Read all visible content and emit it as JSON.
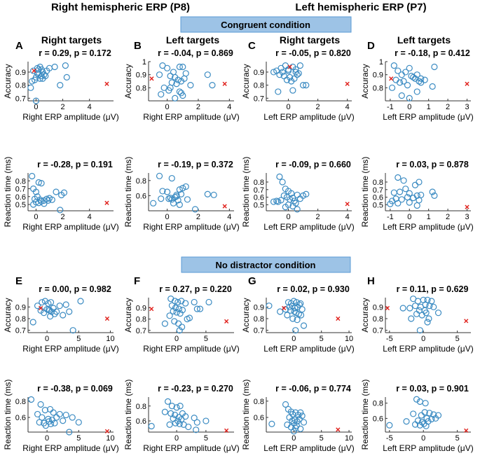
{
  "figure": {
    "header_right": "Right hemispheric ERP (P8)",
    "header_left": "Left hemispheric ERP (P7)",
    "banner_congruent": "Congruent condition",
    "banner_nodistractor": "No distractor condition",
    "panel_letters": [
      "A",
      "B",
      "C",
      "D",
      "E",
      "F",
      "G",
      "H"
    ],
    "col_titles": [
      "Right targets",
      "Left targets",
      "Right targets",
      "Left targets"
    ]
  },
  "colors": {
    "marker": "#3b8bc2",
    "outlier": "#e0201b",
    "banner_fill": "#9dc3e6",
    "axis": "#333333",
    "text": "#000000"
  },
  "chart_data": [
    {
      "id": "A-acc",
      "type": "scatter",
      "panel": "A",
      "title": "r = 0.29, p = 0.172",
      "xlabel": "Right ERP amplitude (μV)",
      "ylabel": "Accuracy",
      "xlim": [
        -0.6,
        5.8
      ],
      "ylim": [
        0.68,
        0.98
      ],
      "xticks": [
        0,
        2,
        4
      ],
      "yticks": [
        0.7,
        0.8,
        0.9
      ],
      "x": [
        -0.2,
        0.1,
        0.3,
        0.5,
        0.2,
        0.4,
        0.0,
        -0.1,
        0.3,
        0.6,
        0.2,
        0.8,
        1.0,
        1.4,
        -0.3,
        0.1,
        0.5,
        2.2,
        2.3,
        0.7,
        1.8,
        0.0,
        -0.4,
        0.4
      ],
      "y": [
        0.91,
        0.93,
        0.94,
        0.9,
        0.88,
        0.87,
        0.86,
        0.84,
        0.85,
        0.88,
        0.92,
        0.91,
        0.93,
        0.94,
        0.83,
        0.89,
        0.85,
        0.95,
        0.86,
        0.87,
        0.8,
        0.68,
        0.78,
        0.92
      ],
      "outliers": {
        "x": [
          -0.15,
          5.3
        ],
        "y": [
          0.91,
          0.81
        ]
      }
    },
    {
      "id": "B-acc",
      "type": "scatter",
      "panel": "B",
      "title": "r = -0.04, p = 0.869",
      "xlabel": "Right ERP amplitude (μV)",
      "ylabel": "Accuracy",
      "xlim": [
        -1.2,
        4.3
      ],
      "ylim": [
        0.7,
        1.0
      ],
      "xticks": [
        0,
        2,
        4
      ],
      "yticks": [
        0.8,
        0.9,
        1
      ],
      "x": [
        -0.3,
        0.0,
        0.4,
        0.8,
        1.0,
        1.2,
        -0.5,
        0.2,
        0.5,
        0.7,
        0.9,
        1.1,
        0.3,
        0.6,
        1.5,
        -0.2,
        0.1,
        0.9,
        2.6,
        2.9,
        -0.4,
        0.8,
        1.0,
        0.5,
        0.2
      ],
      "y": [
        0.97,
        0.95,
        0.92,
        0.96,
        0.96,
        0.91,
        0.9,
        0.89,
        0.88,
        0.86,
        0.85,
        0.87,
        0.84,
        0.83,
        0.82,
        0.8,
        0.78,
        0.76,
        0.9,
        0.82,
        0.75,
        0.77,
        0.74,
        0.72,
        0.8
      ],
      "outliers": {
        "x": [
          -1.0,
          3.7
        ],
        "y": [
          0.87,
          0.83
        ]
      }
    },
    {
      "id": "C-acc",
      "type": "scatter",
      "panel": "C",
      "title": "r = -0.05, p = 0.820",
      "xlabel": "Left ERP amplitude (μV)",
      "ylabel": "Accuracy",
      "xlim": [
        -1.5,
        4.3
      ],
      "ylim": [
        0.68,
        0.98
      ],
      "xticks": [
        0,
        2,
        4
      ],
      "yticks": [
        0.7,
        0.8,
        0.9
      ],
      "x": [
        -0.8,
        -0.5,
        -0.2,
        0.0,
        0.3,
        0.5,
        0.8,
        -0.6,
        -0.3,
        0.1,
        0.4,
        0.7,
        1.0,
        -0.4,
        0.0,
        0.6,
        -0.1,
        0.2,
        1.2,
        -1.0,
        0.3,
        -0.7,
        0.5
      ],
      "y": [
        0.91,
        0.93,
        0.95,
        0.92,
        0.94,
        0.9,
        0.95,
        0.88,
        0.87,
        0.86,
        0.85,
        0.89,
        0.8,
        0.9,
        0.91,
        0.88,
        0.84,
        0.83,
        0.8,
        0.9,
        0.76,
        0.75,
        0.92
      ],
      "outliers": {
        "x": [
          0.1,
          4.0
        ],
        "y": [
          0.94,
          0.81
        ]
      }
    },
    {
      "id": "D-acc",
      "type": "scatter",
      "panel": "D",
      "title": "r = -0.18, p = 0.412",
      "xlabel": "Left ERP amplitude (μV)",
      "ylabel": "Accuracy",
      "xlim": [
        -1.25,
        3.2
      ],
      "ylim": [
        0.7,
        1.0
      ],
      "xticks": [
        -1,
        0,
        1,
        2,
        3
      ],
      "yticks": [
        0.8,
        0.9,
        1
      ],
      "x": [
        -0.8,
        -0.6,
        -0.4,
        -0.2,
        0.0,
        0.2,
        0.4,
        0.6,
        -0.7,
        -0.5,
        -0.3,
        0.1,
        0.3,
        0.5,
        0.8,
        1.3,
        -0.9,
        -0.1,
        0.6,
        1.2,
        -0.4,
        0.0,
        0.4
      ],
      "y": [
        0.97,
        0.93,
        0.9,
        0.92,
        0.95,
        0.88,
        0.9,
        0.87,
        0.86,
        0.84,
        0.85,
        0.89,
        0.87,
        0.85,
        0.86,
        0.96,
        0.8,
        0.82,
        0.84,
        0.81,
        0.74,
        0.72,
        0.77
      ],
      "outliers": {
        "x": [
          -0.95,
          3.0
        ],
        "y": [
          0.87,
          0.83
        ]
      }
    },
    {
      "id": "A-rt",
      "type": "scatter",
      "panel": "A",
      "title": "r = -0.28, p = 0.191",
      "xlabel": "Right ERP amplitude (μV)",
      "ylabel": "Reaction time (ms)",
      "xlim": [
        -0.6,
        5.8
      ],
      "ylim": [
        0.42,
        0.9
      ],
      "xticks": [
        0,
        2,
        4
      ],
      "yticks": [
        0.5,
        0.6,
        0.7,
        0.8
      ],
      "x": [
        -0.3,
        -0.2,
        0.0,
        0.2,
        0.4,
        0.1,
        -0.1,
        0.3,
        0.6,
        0.8,
        1.0,
        1.5,
        1.9,
        2.1,
        0.0,
        0.4,
        0.2,
        -0.2,
        0.9,
        1.2,
        0.6,
        1.8
      ],
      "y": [
        0.86,
        0.7,
        0.66,
        0.78,
        0.77,
        0.6,
        0.57,
        0.56,
        0.55,
        0.57,
        0.58,
        0.66,
        0.62,
        0.65,
        0.53,
        0.54,
        0.52,
        0.5,
        0.55,
        0.56,
        0.51,
        0.43
      ],
      "outliers": {
        "x": [
          5.3
        ],
        "y": [
          0.52
        ]
      }
    },
    {
      "id": "B-rt",
      "type": "scatter",
      "panel": "B",
      "title": "r = -0.19, p = 0.372",
      "xlabel": "Right ERP amplitude (μV)",
      "ylabel": "Reaction time (ms)",
      "xlim": [
        -1.2,
        4.3
      ],
      "ylim": [
        0.4,
        0.9
      ],
      "xticks": [
        0,
        2,
        4
      ],
      "yticks": [
        0.6,
        0.8
      ],
      "x": [
        -0.5,
        -0.3,
        0.0,
        0.3,
        0.8,
        1.0,
        1.2,
        0.9,
        0.6,
        0.2,
        -0.4,
        0.1,
        0.5,
        0.7,
        1.3,
        2.6,
        3.0,
        0.4,
        -0.9,
        0.8,
        1.8,
        0.6,
        0.3
      ],
      "y": [
        0.86,
        0.66,
        0.65,
        0.83,
        0.68,
        0.7,
        0.72,
        0.62,
        0.61,
        0.57,
        0.56,
        0.56,
        0.58,
        0.54,
        0.55,
        0.62,
        0.61,
        0.5,
        0.5,
        0.48,
        0.42,
        0.59,
        0.55
      ],
      "outliers": {
        "x": [
          3.7
        ],
        "y": [
          0.46
        ]
      }
    },
    {
      "id": "C-rt",
      "type": "scatter",
      "panel": "C",
      "title": "r = -0.09, p = 0.660",
      "xlabel": "Left ERP amplitude (μV)",
      "ylabel": "Reaction time (ms)",
      "xlim": [
        -1.5,
        4.3
      ],
      "ylim": [
        0.42,
        0.92
      ],
      "xticks": [
        0,
        2,
        4
      ],
      "yticks": [
        0.5,
        0.6,
        0.7,
        0.8
      ],
      "x": [
        -0.6,
        -0.4,
        -0.2,
        0.0,
        0.2,
        -0.3,
        -0.1,
        0.3,
        0.6,
        1.0,
        1.2,
        0.8,
        -0.8,
        -0.5,
        0.1,
        0.4,
        0.5,
        -1.0,
        -0.7,
        0.0,
        0.3,
        -0.2,
        0.6
      ],
      "y": [
        0.87,
        0.8,
        0.71,
        0.68,
        0.65,
        0.62,
        0.6,
        0.59,
        0.63,
        0.62,
        0.64,
        0.58,
        0.55,
        0.56,
        0.57,
        0.55,
        0.52,
        0.54,
        0.54,
        0.5,
        0.48,
        0.47,
        0.44
      ],
      "outliers": {
        "x": [
          4.0
        ],
        "y": [
          0.51
        ]
      }
    },
    {
      "id": "D-rt",
      "type": "scatter",
      "panel": "D",
      "title": "r = 0.03, p = 0.878",
      "xlabel": "Left ERP amplitude (μV)",
      "ylabel": "Reaction time (ms)",
      "xlim": [
        -1.25,
        3.2
      ],
      "ylim": [
        0.42,
        0.92
      ],
      "xticks": [
        -1,
        0,
        1,
        2,
        3
      ],
      "yticks": [
        0.5,
        0.6,
        0.7,
        0.8
      ],
      "x": [
        -0.6,
        -0.3,
        -0.8,
        -0.5,
        -0.2,
        0.0,
        0.3,
        0.5,
        -0.7,
        -0.4,
        -0.1,
        0.2,
        0.4,
        0.6,
        1.2,
        1.3,
        -0.9,
        -0.6,
        0.0,
        0.5,
        0.4,
        -1.0
      ],
      "y": [
        0.86,
        0.82,
        0.66,
        0.67,
        0.71,
        0.65,
        0.76,
        0.8,
        0.58,
        0.57,
        0.6,
        0.59,
        0.62,
        0.63,
        0.67,
        0.62,
        0.55,
        0.52,
        0.53,
        0.56,
        0.49,
        0.51
      ],
      "outliers": {
        "x": [
          3.0
        ],
        "y": [
          0.47
        ]
      }
    },
    {
      "id": "E-acc",
      "type": "scatter",
      "panel": "E",
      "title": "r = 0.00, p = 0.982",
      "xlabel": "Right ERP amplitude (μV)",
      "ylabel": "Accuracy",
      "xlim": [
        -3.0,
        10.5
      ],
      "ylim": [
        0.68,
        0.98
      ],
      "xticks": [
        0,
        5,
        10
      ],
      "yticks": [
        0.7,
        0.8,
        0.9
      ],
      "x": [
        -1.5,
        -0.8,
        -0.3,
        0.2,
        0.6,
        0.0,
        0.4,
        1.0,
        1.5,
        2.0,
        2.5,
        3.0,
        -1.0,
        -0.5,
        0.3,
        0.7,
        1.2,
        -2.2,
        5.3,
        3.5,
        0.5,
        4.1
      ],
      "y": [
        0.91,
        0.94,
        0.95,
        0.93,
        0.94,
        0.88,
        0.87,
        0.89,
        0.86,
        0.91,
        0.83,
        0.92,
        0.87,
        0.85,
        0.88,
        0.86,
        0.84,
        0.77,
        0.95,
        0.86,
        0.82,
        0.7
      ],
      "outliers": {
        "x": [
          -1.0,
          9.5
        ],
        "y": [
          0.89,
          0.8
        ]
      }
    },
    {
      "id": "F-acc",
      "type": "scatter",
      "panel": "F",
      "title": "r = 0.27, p = 0.220",
      "xlabel": "Right ERP amplitude (μV)",
      "ylabel": "Accuracy",
      "xlim": [
        -4.8,
        9.8
      ],
      "ylim": [
        0.68,
        0.99
      ],
      "xticks": [
        0,
        5
      ],
      "yticks": [
        0.7,
        0.8,
        0.9
      ],
      "x": [
        -1.0,
        -0.3,
        0.2,
        0.8,
        1.5,
        3.0,
        4.0,
        5.5,
        -0.8,
        -0.2,
        0.4,
        1.0,
        -0.6,
        0.0,
        0.6,
        -1.2,
        1.8,
        2.2,
        3.5,
        -0.4,
        0.3,
        -2.0,
        0.9,
        0.5
      ],
      "y": [
        0.98,
        0.96,
        0.95,
        0.96,
        0.94,
        0.95,
        0.89,
        0.95,
        0.92,
        0.9,
        0.89,
        0.88,
        0.87,
        0.86,
        0.85,
        0.83,
        0.8,
        0.81,
        0.89,
        0.78,
        0.76,
        0.76,
        0.73,
        0.7
      ],
      "outliers": {
        "x": [
          -4.3,
          8.5
        ],
        "y": [
          0.89,
          0.78
        ]
      }
    },
    {
      "id": "G-acc",
      "type": "scatter",
      "panel": "G",
      "title": "r = 0.02, p = 0.930",
      "xlabel": "Left ERP amplitude (μV)",
      "ylabel": "Accuracy",
      "xlim": [
        -5.0,
        10.5
      ],
      "ylim": [
        0.68,
        0.98
      ],
      "xticks": [
        0,
        5,
        10
      ],
      "yticks": [
        0.7,
        0.8,
        0.9
      ],
      "x": [
        -1.0,
        -0.5,
        0.0,
        0.5,
        1.0,
        -0.8,
        -0.3,
        0.2,
        0.7,
        1.2,
        1.5,
        -1.5,
        -0.6,
        0.1,
        0.4,
        0.9,
        1.3,
        -2.5,
        -4.5,
        -0.2,
        0.6,
        1.8,
        -1.2,
        0.3
      ],
      "y": [
        0.94,
        0.93,
        0.95,
        0.94,
        0.92,
        0.9,
        0.91,
        0.89,
        0.9,
        0.93,
        0.88,
        0.88,
        0.87,
        0.86,
        0.85,
        0.84,
        0.83,
        0.86,
        0.91,
        0.8,
        0.79,
        0.74,
        0.83,
        0.7
      ],
      "outliers": {
        "x": [
          -1.8,
          8.0
        ],
        "y": [
          0.89,
          0.8
        ]
      }
    },
    {
      "id": "H-acc",
      "type": "scatter",
      "panel": "H",
      "title": "r = 0.11, p = 0.629",
      "xlabel": "Left ERP amplitude (μV)",
      "ylabel": "Accuracy",
      "xlim": [
        -5.6,
        7.0
      ],
      "ylim": [
        0.68,
        0.98
      ],
      "xticks": [
        -5,
        0,
        5
      ],
      "yticks": [
        0.7,
        0.8,
        0.9
      ],
      "x": [
        -1.5,
        -0.8,
        0.0,
        0.6,
        1.2,
        -1.2,
        -0.4,
        0.3,
        0.9,
        -2.0,
        -0.6,
        0.2,
        1.5,
        -3.0,
        -1.0,
        0.4,
        2.2,
        -1.8,
        0.8,
        -0.2,
        0.6,
        -0.5
      ],
      "y": [
        0.97,
        0.95,
        0.96,
        0.96,
        0.95,
        0.91,
        0.9,
        0.92,
        0.91,
        0.89,
        0.87,
        0.87,
        0.9,
        0.89,
        0.84,
        0.85,
        0.85,
        0.8,
        0.8,
        0.83,
        0.77,
        0.7
      ],
      "outliers": {
        "x": [
          -5.3,
          6.3
        ],
        "y": [
          0.89,
          0.78
        ]
      }
    },
    {
      "id": "E-rt",
      "type": "scatter",
      "panel": "E",
      "title": "r = -0.38, p = 0.069",
      "xlabel": "Right ERP amplitude (μV)",
      "ylabel": "Reaction time (ms)",
      "xlim": [
        -3.0,
        10.5
      ],
      "ylim": [
        0.42,
        0.85
      ],
      "xticks": [
        0,
        5,
        10
      ],
      "yticks": [
        0.6,
        0.8
      ],
      "x": [
        -2.5,
        -1.0,
        -0.3,
        0.5,
        1.0,
        -1.5,
        -0.8,
        0.2,
        0.8,
        1.5,
        2.0,
        3.0,
        4.0,
        -1.2,
        -0.5,
        0.3,
        0.6,
        -0.2,
        1.2,
        2.5,
        3.5,
        5.0
      ],
      "y": [
        0.82,
        0.76,
        0.69,
        0.7,
        0.66,
        0.64,
        0.6,
        0.58,
        0.57,
        0.6,
        0.64,
        0.63,
        0.6,
        0.54,
        0.53,
        0.55,
        0.52,
        0.5,
        0.53,
        0.56,
        0.42,
        0.54
      ],
      "outliers": {
        "x": [
          9.5
        ],
        "y": [
          0.43
        ]
      }
    },
    {
      "id": "F-rt",
      "type": "scatter",
      "panel": "F",
      "title": "r = -0.23, p = 0.270",
      "xlabel": "Right ERP amplitude (μV)",
      "ylabel": "Reaction time (ms)",
      "xlim": [
        -4.8,
        9.8
      ],
      "ylim": [
        0.45,
        0.92
      ],
      "xticks": [
        0,
        5
      ],
      "yticks": [
        0.6,
        0.8
      ],
      "x": [
        -1.5,
        -0.8,
        0.0,
        0.6,
        -2.0,
        -1.0,
        -0.3,
        0.4,
        1.0,
        1.5,
        -0.6,
        0.2,
        0.8,
        3.0,
        3.5,
        5.0,
        -0.2,
        0.5,
        -1.2,
        1.2,
        2.0,
        -4.3,
        3.3
      ],
      "y": [
        0.86,
        0.8,
        0.78,
        0.8,
        0.72,
        0.7,
        0.68,
        0.65,
        0.7,
        0.66,
        0.63,
        0.6,
        0.62,
        0.64,
        0.58,
        0.6,
        0.57,
        0.56,
        0.55,
        0.55,
        0.52,
        0.53,
        0.48
      ],
      "outliers": {
        "x": [
          8.5
        ],
        "y": [
          0.47
        ]
      }
    },
    {
      "id": "G-rt",
      "type": "scatter",
      "panel": "G",
      "title": "r = -0.06, p = 0.774",
      "xlabel": "Left ERP amplitude (μV)",
      "ylabel": "Reaction time (ms)",
      "xlim": [
        -5.0,
        10.5
      ],
      "ylim": [
        0.42,
        0.85
      ],
      "xticks": [
        0,
        5,
        10
      ],
      "yticks": [
        0.6,
        0.8
      ],
      "x": [
        -1.5,
        -1.0,
        -0.5,
        -0.2,
        0.3,
        0.8,
        1.2,
        1.5,
        -0.8,
        -0.3,
        0.2,
        0.6,
        1.0,
        -4.0,
        -1.2,
        0.0,
        0.5,
        1.8,
        -0.5,
        0.3,
        1.2,
        0.0
      ],
      "y": [
        0.76,
        0.7,
        0.67,
        0.64,
        0.66,
        0.63,
        0.66,
        0.62,
        0.6,
        0.56,
        0.57,
        0.55,
        0.58,
        0.52,
        0.51,
        0.53,
        0.5,
        0.54,
        0.48,
        0.47,
        0.46,
        0.43
      ],
      "outliers": {
        "x": [
          8.0
        ],
        "y": [
          0.45
        ]
      }
    },
    {
      "id": "H-rt",
      "type": "scatter",
      "panel": "H",
      "title": "r = 0.03, p = 0.901",
      "xlabel": "Left ERP amplitude (μV)",
      "ylabel": "Reaction time (ms)",
      "xlim": [
        -5.6,
        7.0
      ],
      "ylim": [
        0.42,
        0.88
      ],
      "xticks": [
        -5,
        0,
        5
      ],
      "yticks": [
        0.6,
        0.8
      ],
      "x": [
        -1.0,
        -0.5,
        0.3,
        -1.5,
        -0.3,
        0.2,
        0.9,
        1.5,
        2.2,
        -0.8,
        0.5,
        1.2,
        -2.5,
        -0.2,
        0.1,
        0.7,
        -1.2,
        -0.5,
        0.4,
        -5.0,
        1.8
      ],
      "y": [
        0.85,
        0.82,
        0.8,
        0.66,
        0.64,
        0.68,
        0.67,
        0.65,
        0.64,
        0.57,
        0.6,
        0.59,
        0.56,
        0.55,
        0.53,
        0.56,
        0.52,
        0.51,
        0.5,
        0.51,
        0.6
      ],
      "outliers": {
        "x": [
          6.3
        ],
        "y": [
          0.44
        ]
      }
    }
  ]
}
